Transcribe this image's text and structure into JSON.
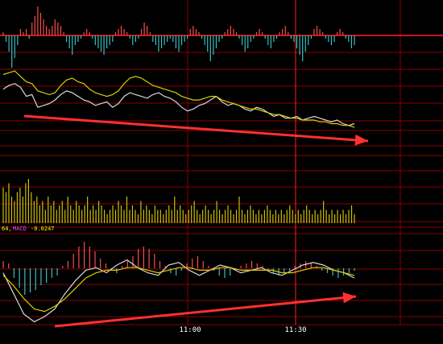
{
  "colors": {
    "background": "#000000",
    "grid": "#8a0000",
    "axis_marker": "#ff2020",
    "bar_pos": "#ff4a4a",
    "bar_neg": "#35c0c0",
    "volume": "#d0c000",
    "line_white": "#d9d9d9",
    "line_yellow": "#d8d000",
    "arrow": "#ff3030",
    "label_white": "#ffffff",
    "label_yellow": "#ffff00",
    "label_magenta": "#ff40ff",
    "axis_text": "#ffffff"
  },
  "labels": {
    "indicator_prefix": "64,",
    "macd_name": "MACD",
    "macd_value": "-0.0247"
  },
  "chart_data": [
    {
      "type": "bar",
      "panel": "top-histogram",
      "values": [
        0.1,
        -0.2,
        -0.5,
        -1.0,
        -0.7,
        -0.3,
        0.2,
        0.1,
        0.2,
        -0.1,
        0.4,
        0.6,
        0.9,
        0.7,
        0.5,
        0.3,
        0.2,
        0.3,
        0.5,
        0.4,
        0.3,
        0.1,
        -0.2,
        -0.4,
        -0.6,
        -0.3,
        -0.2,
        -0.1,
        0.1,
        0.2,
        0.1,
        -0.1,
        -0.3,
        -0.4,
        -0.5,
        -0.6,
        -0.4,
        -0.3,
        -0.2,
        0.1,
        0.2,
        0.3,
        0.2,
        0.1,
        -0.1,
        -0.3,
        -0.2,
        -0.1,
        0.2,
        0.4,
        0.3,
        0.1,
        -0.2,
        -0.3,
        -0.5,
        -0.4,
        -0.3,
        -0.2,
        -0.1,
        -0.2,
        -0.4,
        -0.5,
        -0.3,
        -0.2,
        -0.1,
        0.2,
        0.3,
        0.2,
        0.1,
        -0.1,
        -0.3,
        -0.5,
        -0.8,
        -0.6,
        -0.4,
        -0.2,
        -0.1,
        0.1,
        0.2,
        0.3,
        0.2,
        0.1,
        -0.1,
        -0.3,
        -0.5,
        -0.4,
        -0.2,
        -0.1,
        0.1,
        0.2,
        0.1,
        -0.1,
        -0.3,
        -0.4,
        -0.2,
        -0.1,
        0.1,
        0.2,
        0.3,
        0.1,
        -0.1,
        -0.2,
        -0.4,
        -0.6,
        -0.8,
        -0.5,
        -0.3,
        -0.1,
        0.2,
        0.3,
        0.2,
        0.1,
        -0.1,
        -0.2,
        -0.3,
        -0.2,
        0.1,
        0.2,
        0.1,
        -0.1,
        -0.2,
        -0.4,
        -0.3
      ]
    },
    {
      "type": "line",
      "panel": "price",
      "series": [
        {
          "values": [
            10.6,
            10.8,
            10.9,
            10.7,
            10.2,
            10.3,
            9.6,
            9.7,
            9.8,
            10.0,
            10.3,
            10.5,
            10.4,
            10.2,
            10.0,
            9.9,
            9.7,
            9.8,
            9.9,
            9.6,
            9.8,
            10.2,
            10.4,
            10.3,
            10.2,
            10.1,
            10.3,
            10.4,
            10.2,
            10.1,
            9.9,
            9.6,
            9.4,
            9.5,
            9.7,
            9.8,
            10.0,
            10.2,
            9.9,
            9.7,
            9.8,
            9.7,
            9.5,
            9.4,
            9.6,
            9.5,
            9.3,
            9.1,
            9.2,
            9.0,
            9.0,
            9.1,
            8.9,
            9.0,
            9.1,
            9.0,
            8.9,
            8.8,
            8.9,
            8.7,
            8.6,
            8.7
          ]
        },
        {
          "values": [
            11.4,
            11.5,
            11.6,
            11.3,
            11.0,
            10.9,
            10.5,
            10.4,
            10.3,
            10.4,
            10.8,
            11.1,
            11.2,
            11.0,
            10.9,
            10.6,
            10.4,
            10.3,
            10.2,
            10.3,
            10.5,
            10.9,
            11.2,
            11.3,
            11.2,
            11.0,
            10.8,
            10.7,
            10.6,
            10.5,
            10.4,
            10.2,
            10.1,
            10.0,
            10.0,
            10.1,
            10.2,
            10.2,
            10.0,
            9.9,
            9.8,
            9.7,
            9.6,
            9.5,
            9.5,
            9.4,
            9.3,
            9.2,
            9.2,
            9.1,
            9.0,
            9.0,
            8.9,
            8.9,
            8.9,
            8.8,
            8.8,
            8.7,
            8.7,
            8.6,
            8.6,
            8.5
          ]
        }
      ]
    },
    {
      "type": "bar",
      "panel": "volume",
      "values": [
        0.8,
        0.7,
        0.9,
        0.6,
        0.5,
        0.7,
        0.8,
        0.6,
        0.9,
        1.0,
        0.7,
        0.5,
        0.6,
        0.4,
        0.5,
        0.3,
        0.6,
        0.4,
        0.5,
        0.3,
        0.4,
        0.5,
        0.3,
        0.6,
        0.4,
        0.3,
        0.5,
        0.4,
        0.3,
        0.4,
        0.6,
        0.3,
        0.4,
        0.3,
        0.5,
        0.4,
        0.3,
        0.2,
        0.3,
        0.4,
        0.3,
        0.5,
        0.4,
        0.3,
        0.6,
        0.3,
        0.4,
        0.3,
        0.2,
        0.5,
        0.3,
        0.4,
        0.3,
        0.2,
        0.4,
        0.3,
        0.3,
        0.2,
        0.3,
        0.4,
        0.3,
        0.6,
        0.3,
        0.4,
        0.3,
        0.2,
        0.3,
        0.4,
        0.5,
        0.3,
        0.2,
        0.3,
        0.4,
        0.3,
        0.2,
        0.3,
        0.5,
        0.3,
        0.2,
        0.3,
        0.4,
        0.3,
        0.2,
        0.3,
        0.6,
        0.3,
        0.2,
        0.3,
        0.4,
        0.3,
        0.2,
        0.3,
        0.2,
        0.3,
        0.4,
        0.3,
        0.2,
        0.3,
        0.2,
        0.3,
        0.2,
        0.3,
        0.4,
        0.3,
        0.2,
        0.3,
        0.2,
        0.3,
        0.4,
        0.3,
        0.2,
        0.3,
        0.2,
        0.3,
        0.5,
        0.3,
        0.2,
        0.3,
        0.2,
        0.3,
        0.2,
        0.3,
        0.2,
        0.3,
        0.4,
        0.2
      ]
    },
    {
      "type": "bar",
      "panel": "macd-histogram",
      "values": [
        0.3,
        0.2,
        -0.4,
        -0.8,
        -1.1,
        -1.0,
        -0.9,
        -0.7,
        -0.6,
        -0.4,
        -0.3,
        0.1,
        0.3,
        0.6,
        0.9,
        1.1,
        0.9,
        0.7,
        0.4,
        0.2,
        -0.1,
        -0.2,
        0.1,
        0.3,
        0.5,
        0.8,
        0.9,
        0.8,
        0.6,
        0.3,
        0.1,
        -0.2,
        -0.3,
        -0.1,
        0.2,
        0.4,
        0.5,
        0.3,
        0.1,
        -0.1,
        -0.3,
        -0.4,
        -0.3,
        -0.1,
        0.1,
        0.2,
        0.3,
        0.2,
        0.1,
        -0.1,
        -0.2,
        -0.3,
        -0.2,
        -0.1,
        0.1,
        0.2,
        0.3,
        0.2,
        0.1,
        -0.1,
        -0.2,
        -0.3,
        -0.4,
        -0.3,
        -0.2,
        -0.1
      ]
    },
    {
      "type": "line",
      "panel": "macd",
      "series": [
        {
          "values": [
            0.2,
            -0.6,
            -1.4,
            -1.7,
            -1.5,
            -1.2,
            -0.6,
            -0.1,
            0.3,
            0.4,
            0.2,
            0.5,
            0.7,
            0.4,
            0.2,
            0.1,
            0.5,
            0.6,
            0.3,
            0.1,
            0.3,
            0.5,
            0.4,
            0.2,
            0.3,
            0.4,
            0.2,
            0.1,
            0.3,
            0.5,
            0.6,
            0.5,
            0.3,
            0.2,
            0.0
          ]
        },
        {
          "values": [
            0.1,
            -0.3,
            -0.8,
            -1.2,
            -1.3,
            -1.1,
            -0.8,
            -0.4,
            0.0,
            0.2,
            0.3,
            0.3,
            0.4,
            0.4,
            0.3,
            0.2,
            0.3,
            0.4,
            0.4,
            0.3,
            0.3,
            0.4,
            0.4,
            0.3,
            0.3,
            0.3,
            0.3,
            0.2,
            0.2,
            0.3,
            0.4,
            0.4,
            0.3,
            0.2,
            0.1
          ]
        }
      ]
    }
  ],
  "time_axis": {
    "ticks": [
      "11:00",
      "11:30"
    ]
  }
}
